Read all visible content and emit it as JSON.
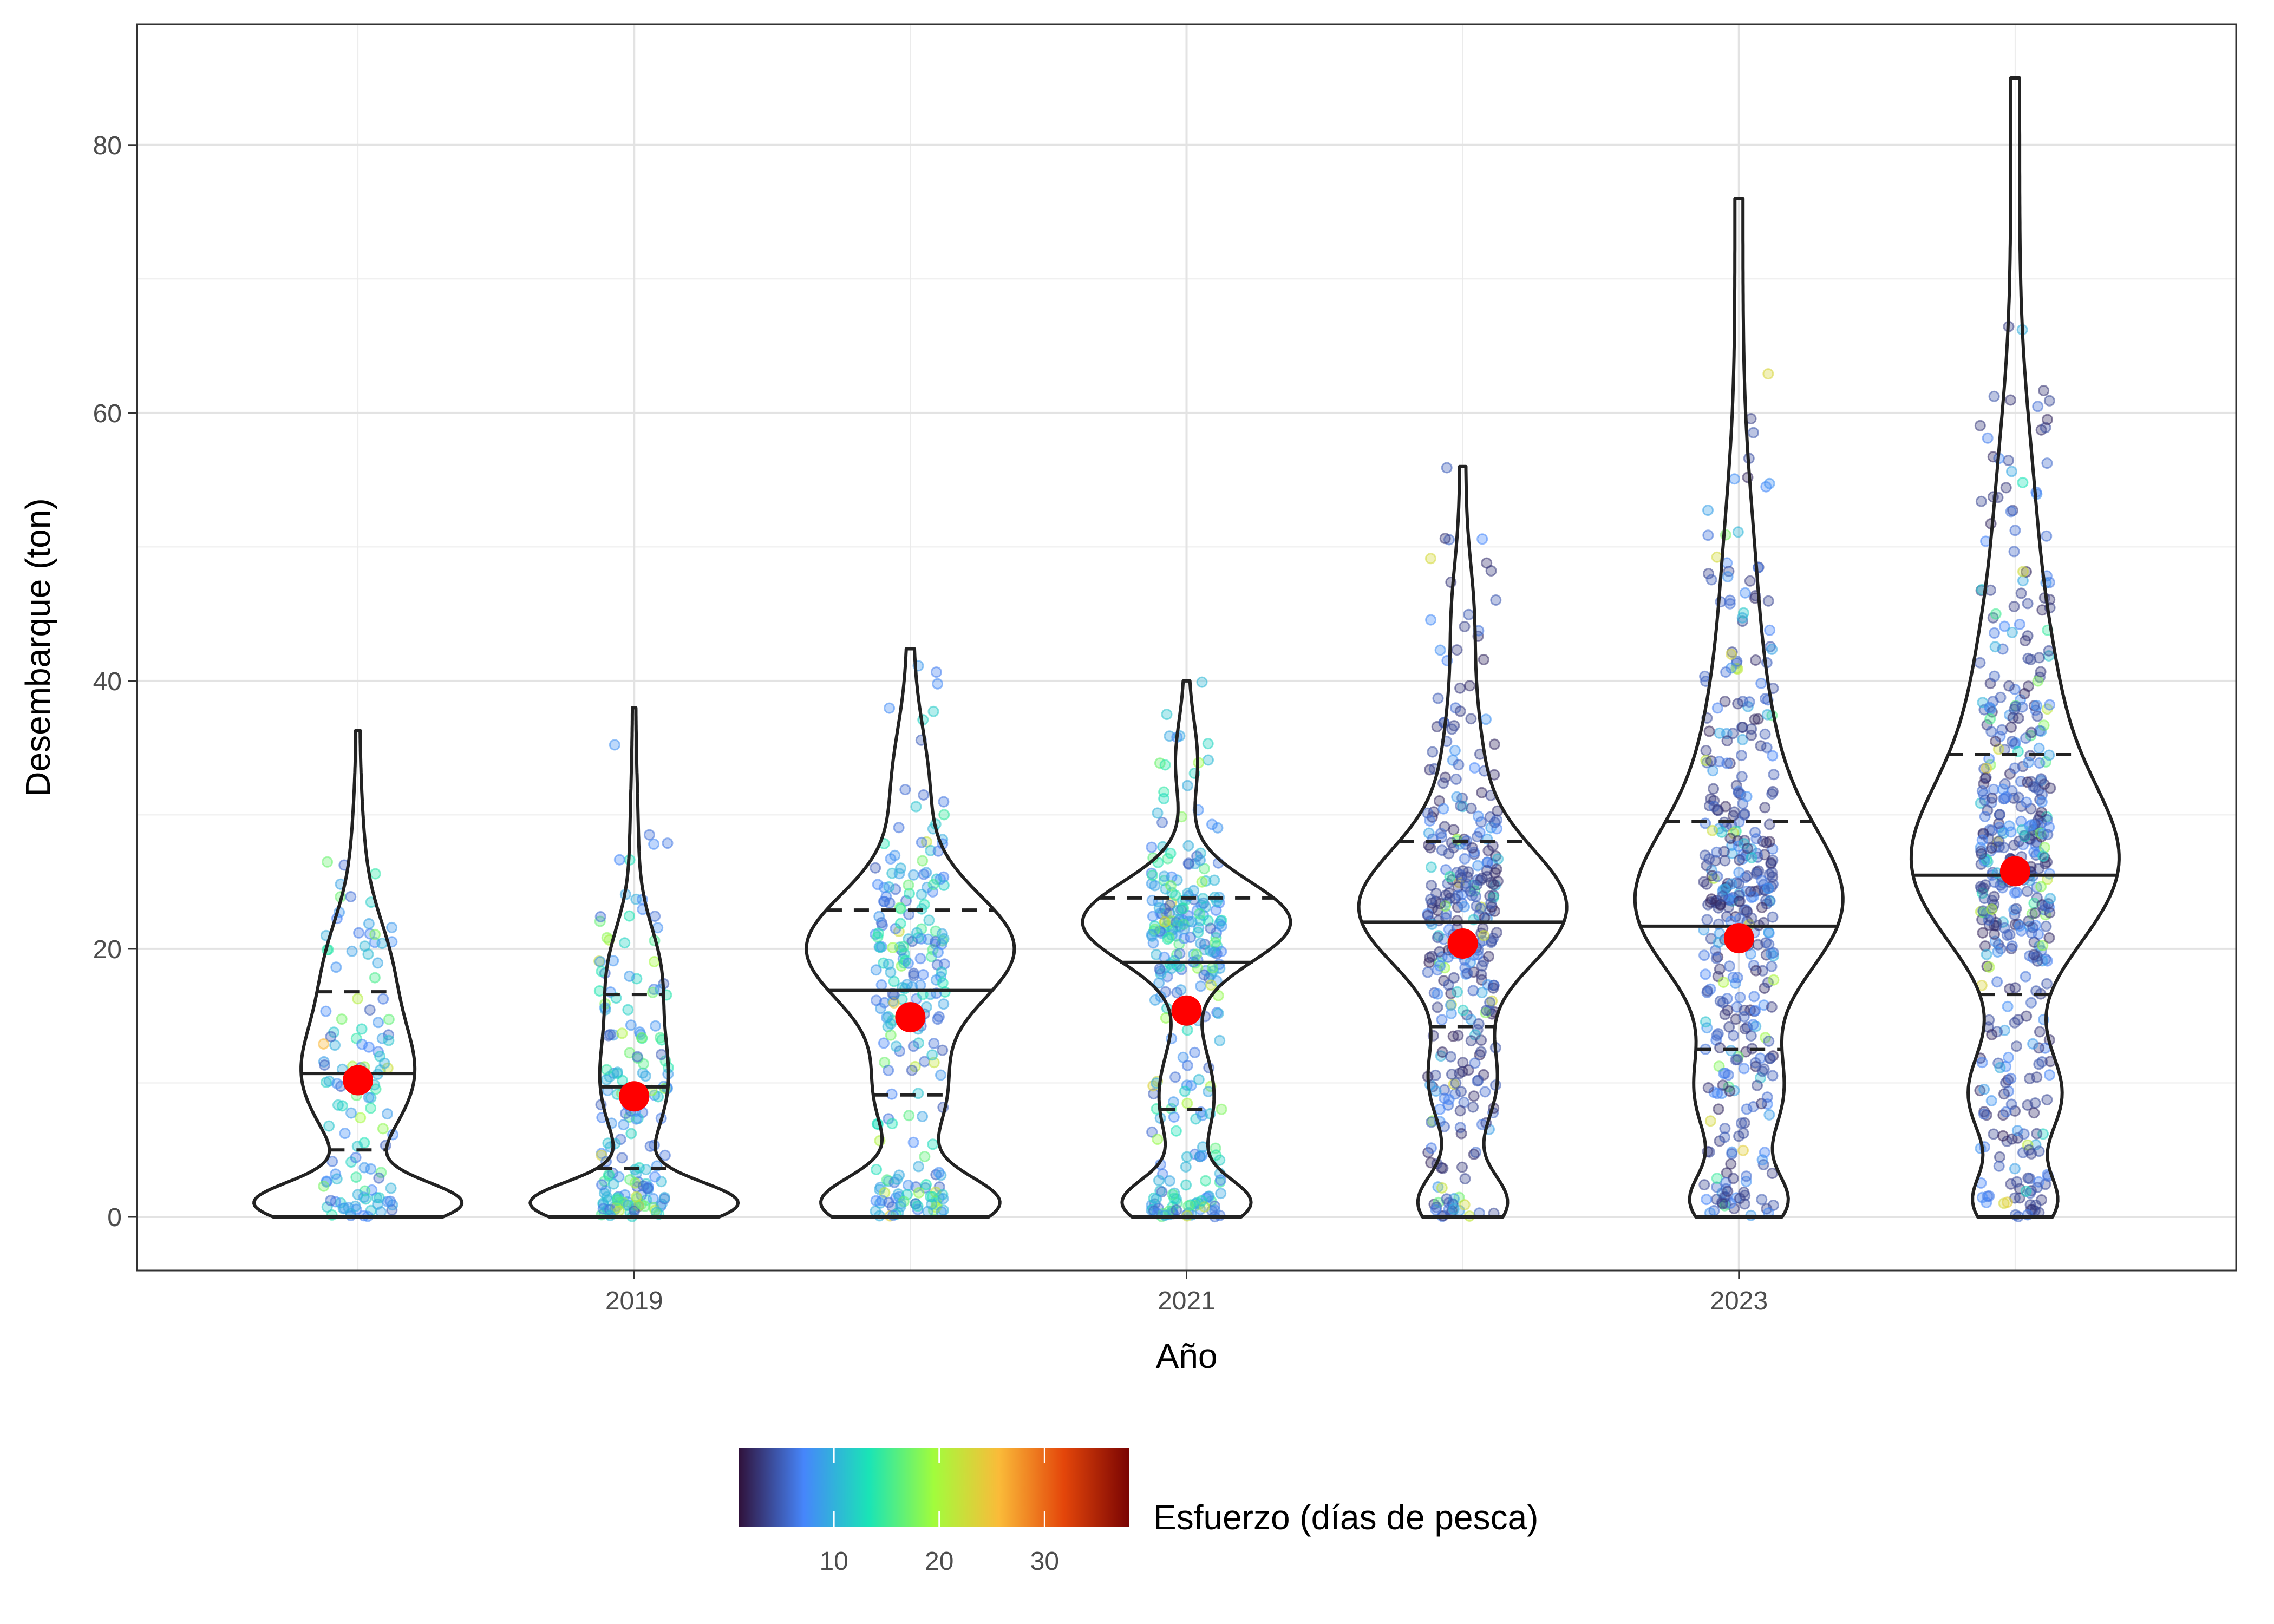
{
  "chart_data": {
    "type": "violin",
    "xlabel": "Año",
    "ylabel": "Desembarque (ton)",
    "x_tick_labels": [
      "2019",
      "2021",
      "2023"
    ],
    "y_tick_labels": [
      "0",
      "20",
      "40",
      "60",
      "80"
    ],
    "x_range": [
      2017.2,
      2024.8
    ],
    "y_range": [
      -4,
      89
    ],
    "grid": true,
    "years": [
      2018,
      2019,
      2020,
      2021,
      2022,
      2023,
      2024
    ],
    "groups": [
      {
        "year": 2018,
        "min": 0,
        "max": 36.3,
        "q1": 5,
        "median": 10.7,
        "q3": 16.8,
        "mean": 10.2
      },
      {
        "year": 2019,
        "min": 0,
        "max": 38,
        "q1": 3.6,
        "median": 9.7,
        "q3": 16.6,
        "mean": 9.0
      },
      {
        "year": 2020,
        "min": 0,
        "max": 42.4,
        "q1": 9.1,
        "median": 16.9,
        "q3": 22.9,
        "mean": 14.9
      },
      {
        "year": 2021,
        "min": 0,
        "max": 40,
        "q1": 8.0,
        "median": 19.0,
        "q3": 23.8,
        "mean": 15.4
      },
      {
        "year": 2022,
        "min": 0,
        "max": 56,
        "q1": 14.2,
        "median": 22.0,
        "q3": 28.0,
        "mean": 20.4
      },
      {
        "year": 2023,
        "min": 0,
        "max": 76,
        "q1": 12.5,
        "median": 21.7,
        "q3": 29.5,
        "mean": 20.8
      },
      {
        "year": 2024,
        "min": 0,
        "max": 85,
        "q1": 16.6,
        "median": 25.5,
        "q3": 34.5,
        "mean": 25.8
      }
    ],
    "colorbar": {
      "title": "Esfuerzo (días de pesca)",
      "min": 1,
      "max": 38,
      "ticks": [
        10,
        20,
        30
      ],
      "tick_labels": [
        "10",
        "20",
        "30"
      ],
      "colors": [
        "#30123b",
        "#4686fb",
        "#1ae4b6",
        "#a2fc3c",
        "#fabb39",
        "#e4460a",
        "#7a0403"
      ]
    },
    "mean_marker_color": "#ff0000"
  }
}
